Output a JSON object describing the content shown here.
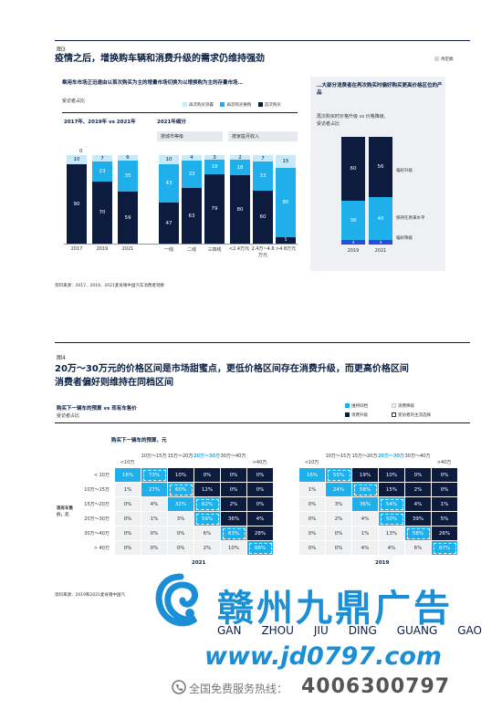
{
  "fig3": {
    "label": "图3",
    "title": "疫情之后，增换购车辆和消费升级的需求仍维持强劲",
    "tag": "待定稿",
    "left_heading": "乘用车市场正迅速由以首次购买为主的增量市场切换为以增换购为主的存量市场…",
    "left_sub": "受访者占比",
    "legend": [
      "再次购买添置",
      "再次购买换购",
      "首次购买"
    ],
    "group1_title": "2017年、2019年 vs 2021年",
    "group2_title": "2021年细分",
    "city_box": "按城市等级",
    "income_box": "按家庭月收入",
    "bars": [
      {
        "x": "2017",
        "top": "10",
        "mid": "0",
        "bot": "90"
      },
      {
        "x": "2019",
        "top": "7",
        "mid": "23",
        "bot": "70"
      },
      {
        "x": "2021",
        "top": "6",
        "mid": "35",
        "bot": "59"
      },
      {
        "x": "一线",
        "top": "10",
        "mid": "43",
        "bot": "47"
      },
      {
        "x": "二线",
        "top": "4",
        "mid": "33",
        "bot": "63"
      },
      {
        "x": "三四线",
        "top": "3",
        "mid": "18",
        "bot": "79"
      },
      {
        "x": "<2.4万元",
        "top": "2",
        "mid": "18",
        "bot": "80"
      },
      {
        "x": "2.4万~4.8万元",
        "top": "7",
        "mid": "33",
        "bot": "60"
      },
      {
        "x": ">4.8万元",
        "top": "15",
        "mid": "80",
        "bot": "5"
      }
    ],
    "right_heading": "…大部分消费者在再次购买时偏好购买更高价格区位的产品",
    "right_sub1": "再次购买时价格升级 vs 价格降级,",
    "right_sub2": "受访者占比",
    "right_bars": [
      {
        "x": "2019",
        "top": "60",
        "mid": "36",
        "bot": "4"
      },
      {
        "x": "2021",
        "top": "56",
        "mid": "40",
        "bot": "4"
      }
    ],
    "right_labels": [
      "偏好升级",
      "保持在原来水平",
      "偏好降级"
    ],
    "source": "资料来源：2017、2019、2021麦肯锡中国汽车消费者洞察"
  },
  "fig4": {
    "label": "图4",
    "title_line1": "20万～30万元的价格区间是市场甜蜜点，更低价格区间存在消费升级，而更高价格区间",
    "title_line2": "消费者偏好则维持在同档区间",
    "subhead": "购买下一辆车的预算 vs 现有车售价",
    "sub": "受访者占比",
    "legend": [
      "维持同档",
      "消费降级",
      "消费升级",
      "受访者的主流选择"
    ],
    "col_title": "购买下一辆车的预算，元",
    "row_title": "现有车售价，元",
    "cols": [
      "<10万",
      "10万～15万",
      "15万～20万",
      "20万～30万",
      "30万～40万",
      ">40万"
    ],
    "rows": [
      "< 10万",
      "10万～15万",
      "15万～20万",
      "20万～30万",
      "30万～40万",
      "> 40万"
    ],
    "t2021": [
      [
        "16%",
        "73%",
        "10%",
        "0%",
        "0%",
        "0%"
      ],
      [
        "1%",
        "27%",
        "60%",
        "12%",
        "0%",
        "0%"
      ],
      [
        "0%",
        "4%",
        "32%",
        "62%",
        "2%",
        "0%"
      ],
      [
        "0%",
        "1%",
        "3%",
        "59%",
        "36%",
        "4%"
      ],
      [
        "0%",
        "0%",
        "0%",
        "6%",
        "63%",
        "28%"
      ],
      [
        "0%",
        "0%",
        "0%",
        "2%",
        "10%",
        "88%"
      ]
    ],
    "t2019": [
      [
        "16%",
        "55%",
        "19%",
        "10%",
        "0%",
        "0%"
      ],
      [
        "1%",
        "24%",
        "58%",
        "15%",
        "2%",
        "0%"
      ],
      [
        "0%",
        "3%",
        "36%",
        "54%",
        "4%",
        "1%"
      ],
      [
        "0%",
        "2%",
        "4%",
        "50%",
        "39%",
        "5%"
      ],
      [
        "0%",
        "0%",
        "1%",
        "13%",
        "58%",
        "26%"
      ],
      [
        "0%",
        "0%",
        "4%",
        "4%",
        "6%",
        "87%"
      ]
    ],
    "year_a": "2021",
    "year_b": "2019",
    "source": "资料来源：2019和2021麦肯锡中国汽"
  },
  "watermark": {
    "brand": "赣州九鼎广告",
    "pinyin": [
      "GAN",
      "ZHOU",
      "JIU",
      "DING",
      "GUANG",
      "GAO"
    ],
    "url": "www.jd0797.com",
    "hotline_label": "全国免费服务热线：",
    "hotline": "4006300797",
    "brand_color": "#1a8fd6"
  }
}
